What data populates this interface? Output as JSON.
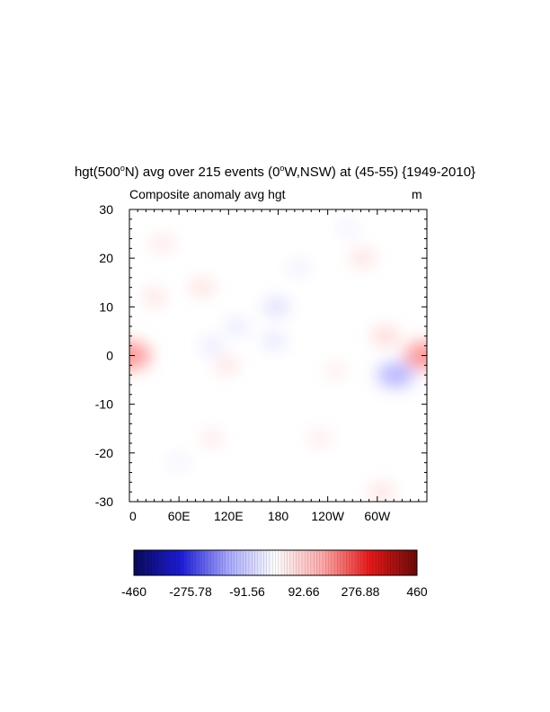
{
  "chart_data": {
    "type": "heatmap",
    "title": {
      "main": "hgt(500",
      "sup1": "o",
      "mid1": "N) avg over 215 events (0",
      "sup2": "o",
      "mid2": "W,NSW) at (45-55) {1949-2010}"
    },
    "subtitle_left": "Composite anomaly avg hgt",
    "subtitle_right": "m",
    "xlabel": "",
    "ylabel": "",
    "x_ticks": [
      "0",
      "60E",
      "120E",
      "180",
      "120W",
      "60W"
    ],
    "y_ticks": [
      "30",
      "20",
      "10",
      "0",
      "-10",
      "-20",
      "-30"
    ],
    "xlim": [
      0,
      360
    ],
    "ylim": [
      -30,
      30
    ],
    "colorbar": {
      "min": -460,
      "max": 460,
      "labels": [
        "-460",
        "-275.78",
        "-91.56",
        "92.66",
        "276.88",
        "460"
      ],
      "colors": [
        "#0a0a5a",
        "#1c1cd8",
        "#a8a8ff",
        "#ffffff",
        "#ffa8a8",
        "#e81818",
        "#6a0a0a"
      ]
    },
    "anomaly_features": [
      {
        "lon": 0,
        "lat": 0,
        "value": 170
      },
      {
        "lon": 358,
        "lat": 0,
        "value": 170
      },
      {
        "lon": 30,
        "lat": 12,
        "value": 50
      },
      {
        "lon": 88,
        "lat": 14,
        "value": 55
      },
      {
        "lon": 118,
        "lat": -2,
        "value": 50
      },
      {
        "lon": 178,
        "lat": 10,
        "value": -60
      },
      {
        "lon": 175,
        "lat": 3,
        "value": -45
      },
      {
        "lon": 130,
        "lat": 6,
        "value": -40
      },
      {
        "lon": 100,
        "lat": 2,
        "value": -40
      },
      {
        "lon": 322,
        "lat": -4,
        "value": -130
      },
      {
        "lon": 310,
        "lat": 4,
        "value": 70
      },
      {
        "lon": 282,
        "lat": 20,
        "value": 55
      },
      {
        "lon": 40,
        "lat": 23,
        "value": 45
      },
      {
        "lon": 230,
        "lat": -17,
        "value": 40
      },
      {
        "lon": 305,
        "lat": -28,
        "value": 55
      },
      {
        "lon": 100,
        "lat": -17,
        "value": 40
      },
      {
        "lon": 250,
        "lat": -3,
        "value": 35
      },
      {
        "lon": 205,
        "lat": 18,
        "value": -30
      },
      {
        "lon": 60,
        "lat": -22,
        "value": -25
      },
      {
        "lon": 265,
        "lat": 26,
        "value": -25
      }
    ]
  }
}
